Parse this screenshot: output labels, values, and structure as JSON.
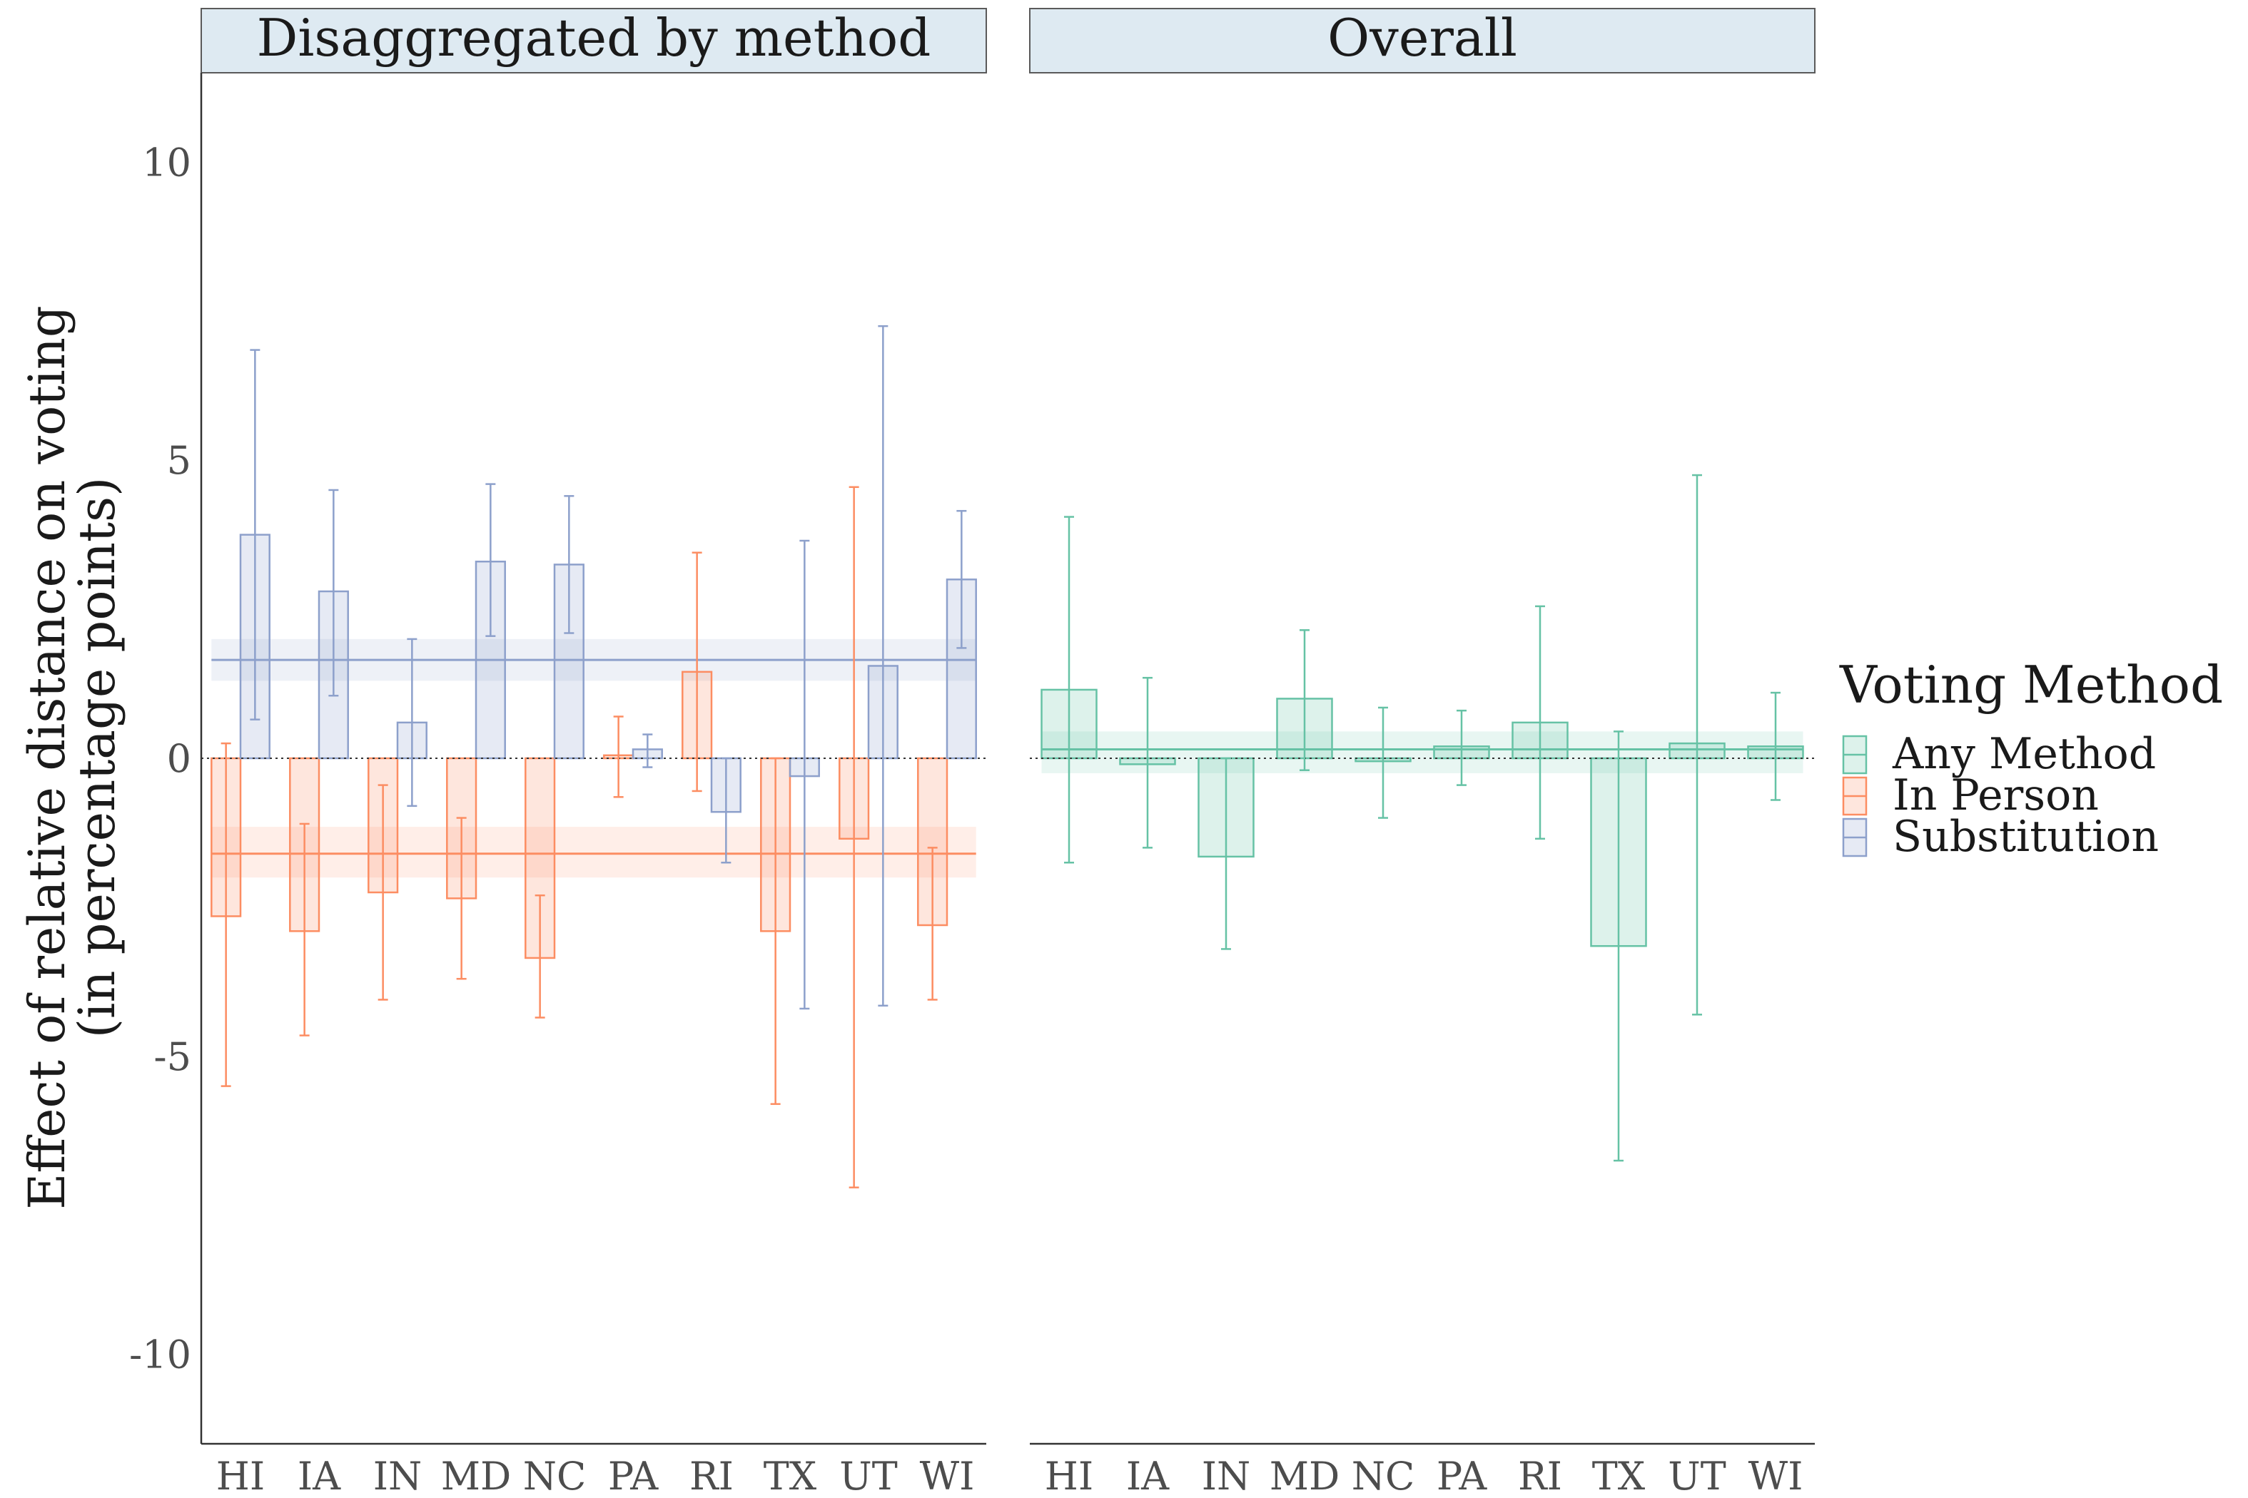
{
  "chart_data": {
    "type": "bar",
    "ylabel_lines": [
      "Effect of relative distance on voting",
      "(in percentage points)"
    ],
    "ylim": [
      -11.5,
      11.5
    ],
    "yticks": [
      10,
      5,
      0,
      -5,
      -10
    ],
    "ytick_labels": [
      "10",
      "5",
      "0",
      "-5",
      "-10"
    ],
    "categories": [
      "HI",
      "IA",
      "IN",
      "MD",
      "NC",
      "PA",
      "RI",
      "TX",
      "UT",
      "WI"
    ],
    "grid": false,
    "legend": {
      "title": "Voting Method",
      "position": "right",
      "entries": [
        "Any Method",
        "In Person",
        "Substitution"
      ]
    },
    "colors": {
      "Any Method": "#66c2a5",
      "In Person": "#fc8d62",
      "Substitution": "#8da0cb"
    },
    "panels": [
      {
        "title": "Disaggregated by method",
        "series": [
          {
            "name": "In Person",
            "values": [
              -2.65,
              -2.9,
              -2.25,
              -2.35,
              -3.35,
              0.05,
              1.45,
              -2.9,
              -1.35,
              -2.8
            ],
            "ci_low": [
              -5.5,
              -4.65,
              -4.05,
              -3.7,
              -4.35,
              -0.65,
              -0.55,
              -5.8,
              -7.2,
              -4.05
            ],
            "ci_high": [
              0.25,
              -1.1,
              -0.45,
              -1.0,
              -2.3,
              0.7,
              3.45,
              0.0,
              4.55,
              -1.5
            ],
            "pooled": {
              "estimate": -1.6,
              "ci": [
                -2.0,
                -1.15
              ]
            }
          },
          {
            "name": "Substitution",
            "values": [
              3.75,
              2.8,
              0.6,
              3.3,
              3.25,
              0.15,
              -0.9,
              -0.3,
              1.55,
              3.0
            ],
            "ci_low": [
              0.65,
              1.05,
              -0.8,
              2.05,
              2.1,
              -0.15,
              -1.75,
              -4.2,
              -4.15,
              1.85
            ],
            "ci_high": [
              6.85,
              4.5,
              2.0,
              4.6,
              4.4,
              0.4,
              0.0,
              3.65,
              7.25,
              4.15
            ],
            "pooled": {
              "estimate": 1.65,
              "ci": [
                1.3,
                2.0
              ]
            }
          }
        ]
      },
      {
        "title": "Overall",
        "series": [
          {
            "name": "Any Method",
            "values": [
              1.15,
              -0.1,
              -1.65,
              1.0,
              -0.05,
              0.2,
              0.6,
              -3.15,
              0.25,
              0.2
            ],
            "ci_low": [
              -1.75,
              -1.5,
              -3.2,
              -0.2,
              -1.0,
              -0.45,
              -1.35,
              -6.75,
              -4.3,
              -0.7
            ],
            "ci_high": [
              4.05,
              1.35,
              0.0,
              2.15,
              0.85,
              0.8,
              2.55,
              0.45,
              4.75,
              1.1
            ],
            "pooled": {
              "estimate": 0.15,
              "ci": [
                -0.25,
                0.45
              ]
            }
          }
        ]
      }
    ]
  }
}
